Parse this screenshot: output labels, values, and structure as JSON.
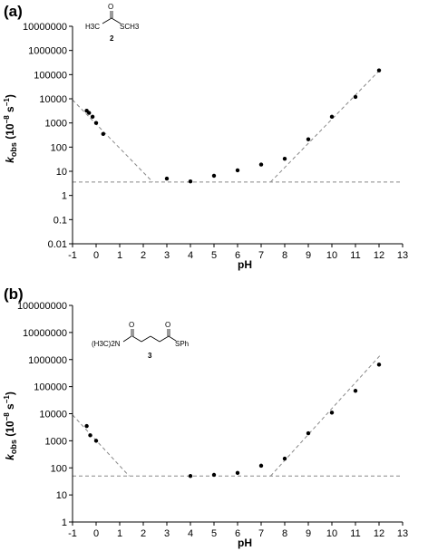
{
  "panels": [
    {
      "label": "(a)",
      "compound_number": "2",
      "structure": {
        "o": "O",
        "left": "H3C",
        "right": "SCH3"
      }
    },
    {
      "label": "(b)",
      "compound_number": "3",
      "structure": {
        "o1": "O",
        "o2": "O",
        "left": "(H3C)2N",
        "right": "SPh"
      }
    }
  ],
  "chart_data": [
    {
      "type": "scatter",
      "title": "(a)",
      "xlabel": "pH",
      "ylabel_main": "k",
      "ylabel_sub": "obs",
      "ylabel_units": " (10",
      "ylabel_exp": "−8",
      "ylabel_tail": " s",
      "ylabel_exp2": "−1",
      "ylabel_close": ")",
      "xlim": [
        -1,
        13
      ],
      "ylim": [
        0.01,
        10000000
      ],
      "y_scale": "log",
      "x_ticks": [
        "-1",
        "0",
        "1",
        "2",
        "3",
        "4",
        "5",
        "6",
        "7",
        "8",
        "9",
        "10",
        "11",
        "12",
        "13"
      ],
      "y_ticks": [
        "0.01",
        "0.1",
        "1",
        "10",
        "100",
        "1000",
        "10000",
        "100000",
        "1000000",
        "10000000"
      ],
      "points": [
        {
          "x": -0.4,
          "y": 3200
        },
        {
          "x": -0.3,
          "y": 2600
        },
        {
          "x": -0.15,
          "y": 1800
        },
        {
          "x": 0,
          "y": 1000
        },
        {
          "x": 0.3,
          "y": 350
        },
        {
          "x": 3,
          "y": 5
        },
        {
          "x": 4,
          "y": 3.8
        },
        {
          "x": 5,
          "y": 6.5
        },
        {
          "x": 6,
          "y": 11
        },
        {
          "x": 7,
          "y": 19
        },
        {
          "x": 8,
          "y": 33
        },
        {
          "x": 9,
          "y": 210
        },
        {
          "x": 10,
          "y": 1800
        },
        {
          "x": 11,
          "y": 12000
        },
        {
          "x": 12,
          "y": 150000
        }
      ],
      "fit_lines": [
        {
          "x1": -1,
          "y1": 9000,
          "x2": 2.4,
          "y2": 3.6
        },
        {
          "x1": -1,
          "y1": 3.6,
          "x2": 13,
          "y2": 3.6
        },
        {
          "x1": 7.4,
          "y1": 3.6,
          "x2": 12.1,
          "y2": 180000
        }
      ],
      "grid": false,
      "legend": "none"
    },
    {
      "type": "scatter",
      "title": "(b)",
      "xlabel": "pH",
      "ylabel_main": "k",
      "ylabel_sub": "obs",
      "ylabel_units": " (10",
      "ylabel_exp": "−8",
      "ylabel_tail": " s",
      "ylabel_exp2": "−1",
      "ylabel_close": ")",
      "xlim": [
        -1,
        13
      ],
      "ylim": [
        1,
        100000000
      ],
      "y_scale": "log",
      "x_ticks": [
        "-1",
        "0",
        "1",
        "2",
        "3",
        "4",
        "5",
        "6",
        "7",
        "8",
        "9",
        "10",
        "11",
        "12",
        "13"
      ],
      "y_ticks": [
        "1",
        "10",
        "100",
        "1000",
        "10000",
        "100000",
        "1000000",
        "10000000",
        "100000000"
      ],
      "points": [
        {
          "x": -0.4,
          "y": 3500
        },
        {
          "x": -0.25,
          "y": 1600
        },
        {
          "x": 0,
          "y": 1000
        },
        {
          "x": 4,
          "y": 50
        },
        {
          "x": 5,
          "y": 55
        },
        {
          "x": 6,
          "y": 65
        },
        {
          "x": 7,
          "y": 120
        },
        {
          "x": 8,
          "y": 220
        },
        {
          "x": 9,
          "y": 1900
        },
        {
          "x": 10,
          "y": 11000
        },
        {
          "x": 11,
          "y": 70000
        },
        {
          "x": 12,
          "y": 650000
        }
      ],
      "fit_lines": [
        {
          "x1": -1,
          "y1": 9000,
          "x2": 1.4,
          "y2": 50
        },
        {
          "x1": -1,
          "y1": 50,
          "x2": 13,
          "y2": 50
        },
        {
          "x1": 7.4,
          "y1": 50,
          "x2": 12.1,
          "y2": 1600000
        }
      ],
      "grid": false,
      "legend": "none"
    }
  ]
}
